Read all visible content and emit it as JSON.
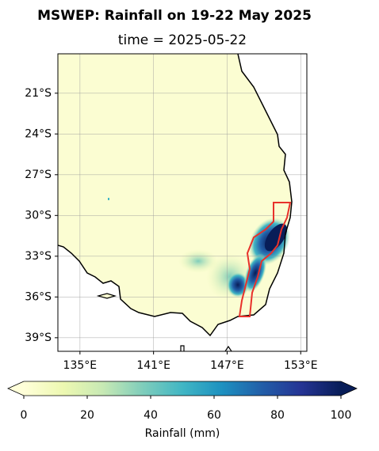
{
  "title": "MSWEP: Rainfall on 19-22 May 2025",
  "subtitle": "time = 2025-05-22",
  "map": {
    "xlim": [
      133.2,
      153.5
    ],
    "ylim": [
      -40,
      -18.1
    ],
    "xticks": [
      {
        "value": 135,
        "label": "135°E"
      },
      {
        "value": 141,
        "label": "141°E"
      },
      {
        "value": 147,
        "label": "147°E"
      },
      {
        "value": 153,
        "label": "153°E"
      }
    ],
    "yticks": [
      {
        "value": -21,
        "label": "21°S"
      },
      {
        "value": -24,
        "label": "24°S"
      },
      {
        "value": -27,
        "label": "27°S"
      },
      {
        "value": -30,
        "label": "30°S"
      },
      {
        "value": -33,
        "label": "33°S"
      },
      {
        "value": -36,
        "label": "36°S"
      },
      {
        "value": -39,
        "label": "39°S"
      }
    ],
    "grid": true
  },
  "colorbar": {
    "range": [
      0,
      100
    ],
    "ticks": [
      0,
      20,
      40,
      60,
      80,
      100
    ],
    "label": "Rainfall (mm)",
    "colors": [
      "#ffffd9",
      "#edf8b1",
      "#c7e9b4",
      "#7fcdbb",
      "#41b6c4",
      "#1d91c0",
      "#225ea8",
      "#253494",
      "#081d58"
    ]
  }
}
